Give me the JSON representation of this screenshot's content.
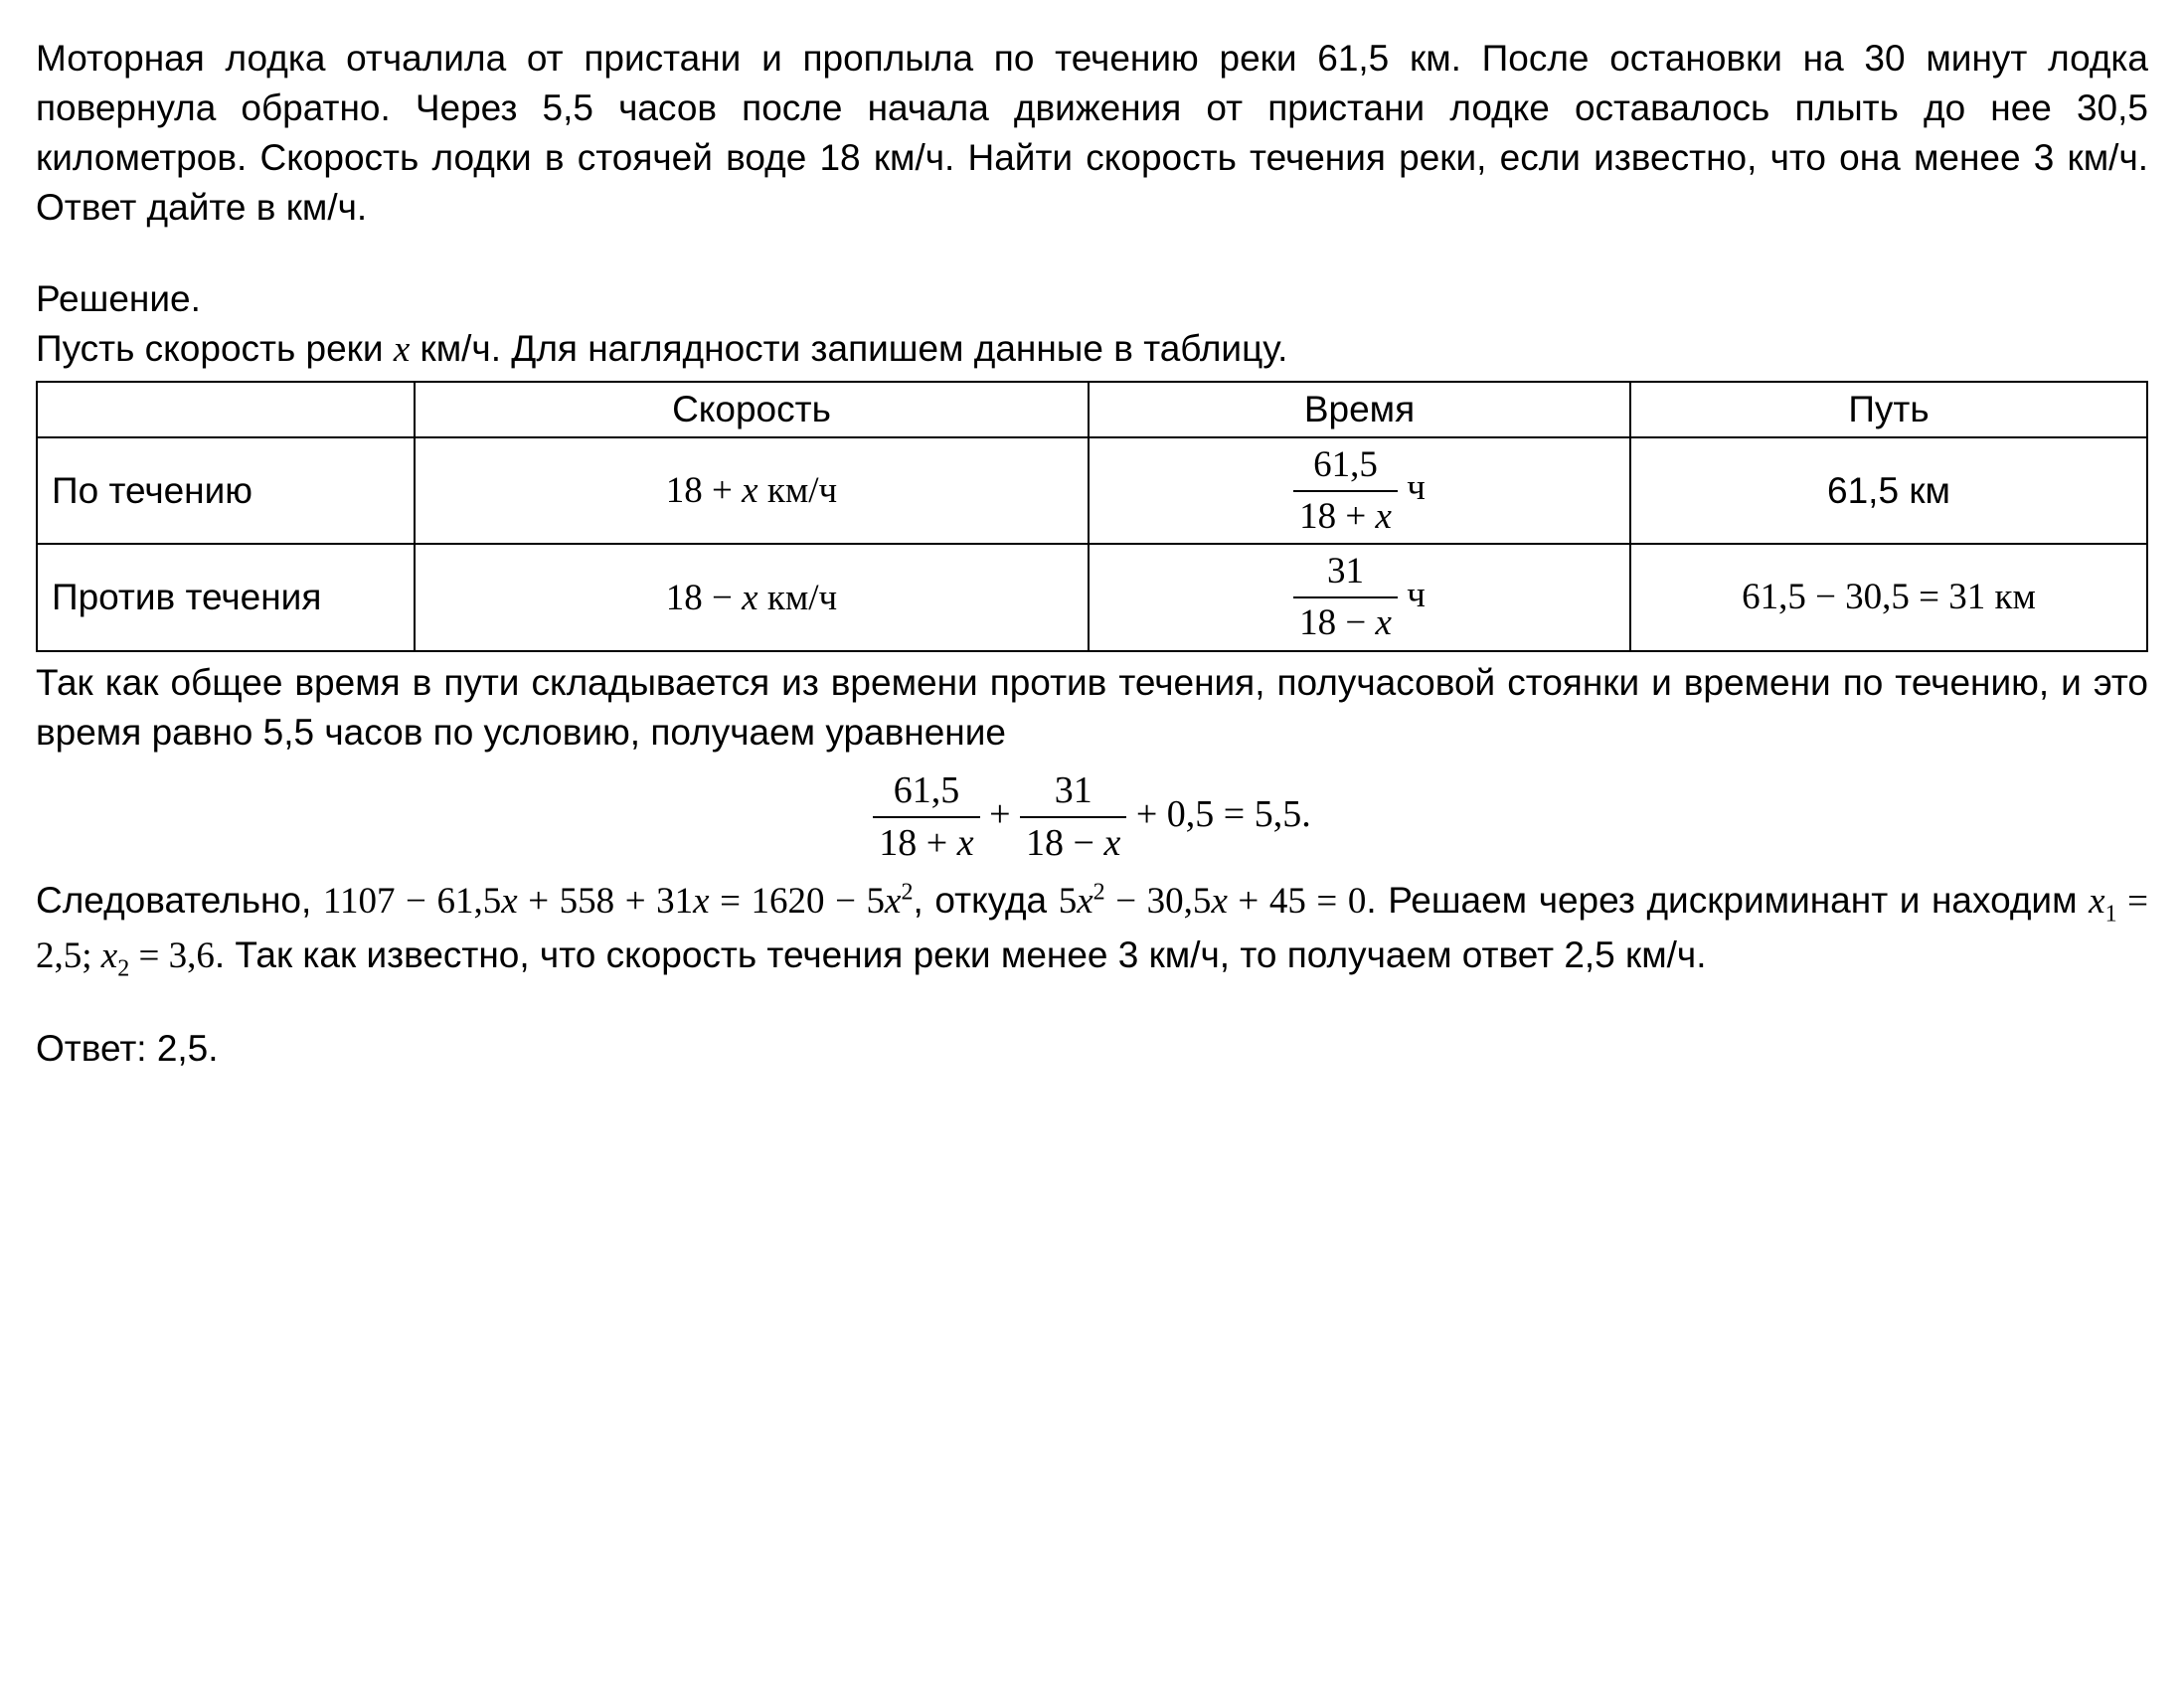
{
  "problem": "Моторная лодка отчалила от пристани и проплыла по течению реки 61,5 км. После остановки на 30 минут лодка повернула обратно. Через 5,5 часов после начала движения от пристани лодке оставалось плыть до нее 30,5 километров. Скорость лодки в стоячей воде 18 км/ч. Найти скорость течения реки, если известно, что она менее 3 км/ч. Ответ дайте в км/ч.",
  "solution_label": "Решение.",
  "intro_before_x": "Пусть скорость реки ",
  "intro_after_x": " км/ч. Для наглядности запишем данные в таблицу.",
  "var_x": "x",
  "table": {
    "headers": {
      "speed": "Скорость",
      "time": "Время",
      "path": "Путь"
    },
    "row1": {
      "label": "По течению",
      "speed_before": "18 + ",
      "speed_after": " км/ч",
      "time_num": "61,5",
      "time_den_before": "18 + ",
      "time_unit": " ч",
      "path": "61,5 км"
    },
    "row2": {
      "label": "Против течения",
      "speed_before": "18 − ",
      "speed_after": " км/ч",
      "time_num": "31",
      "time_den_before": "18 − ",
      "time_unit": " ч",
      "path": "61,5 − 30,5 = 31 км"
    }
  },
  "after_table": "Так как общее время в пути складывается из времени против течения, получасовой стоянки и времени по течению, и это время равно 5,5 часов по условию, получаем уравнение",
  "equation": {
    "f1_num": "61,5",
    "f1_den_pre": "18 + ",
    "plus1": " + ",
    "f2_num": "31",
    "f2_den_pre": "18 − ",
    "tail": " + 0,5 = 5,5."
  },
  "conseq": {
    "pre": "Следовательно,  ",
    "eq1_a": "1107 − 61,5",
    "eq1_b": " + 558 + 31",
    "eq1_c": " = 1620 − 5",
    "mid1": ",  откуда  ",
    "eq2_a": "5",
    "eq2_b": " − 30,5",
    "eq2_c": " + 45 = 0",
    "mid2": ". Решаем через дискриминант и находим  ",
    "x1": " = 2,5;  ",
    "x2": " = 3,6",
    "tail": ". Так как известно, что скорость течения реки менее 3 км/ч, то получаем ответ 2,5 км/ч."
  },
  "answer_label": "Ответ: ",
  "answer_value": "2,5."
}
